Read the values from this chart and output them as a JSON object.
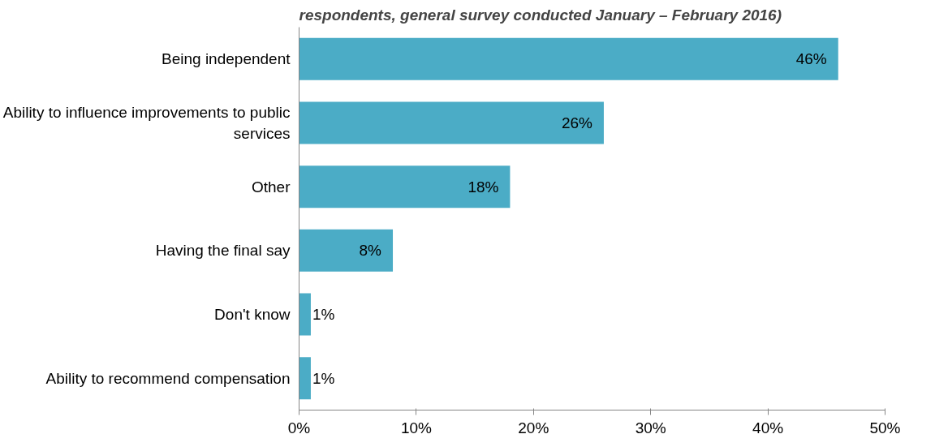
{
  "chart_data": {
    "type": "bar",
    "orientation": "horizontal",
    "title": "respondents, general survey conducted January – February 2016)",
    "categories": [
      "Being independent",
      "Ability to influence improvements to public services",
      "Other",
      "Having the final say",
      "Don't know",
      "Ability to recommend compensation"
    ],
    "values": [
      46,
      26,
      18,
      8,
      1,
      1
    ],
    "value_labels": [
      "46%",
      "26%",
      "18%",
      "8%",
      "1%",
      "1%"
    ],
    "color": "#4bacc6",
    "xlim": [
      0,
      50
    ],
    "xticks": [
      {
        "value": 0,
        "label": "0%"
      },
      {
        "value": 10,
        "label": "10%"
      },
      {
        "value": 20,
        "label": "20%"
      },
      {
        "value": 30,
        "label": "30%"
      },
      {
        "value": 40,
        "label": "40%"
      },
      {
        "value": 50,
        "label": "50%"
      }
    ],
    "grid": false
  }
}
